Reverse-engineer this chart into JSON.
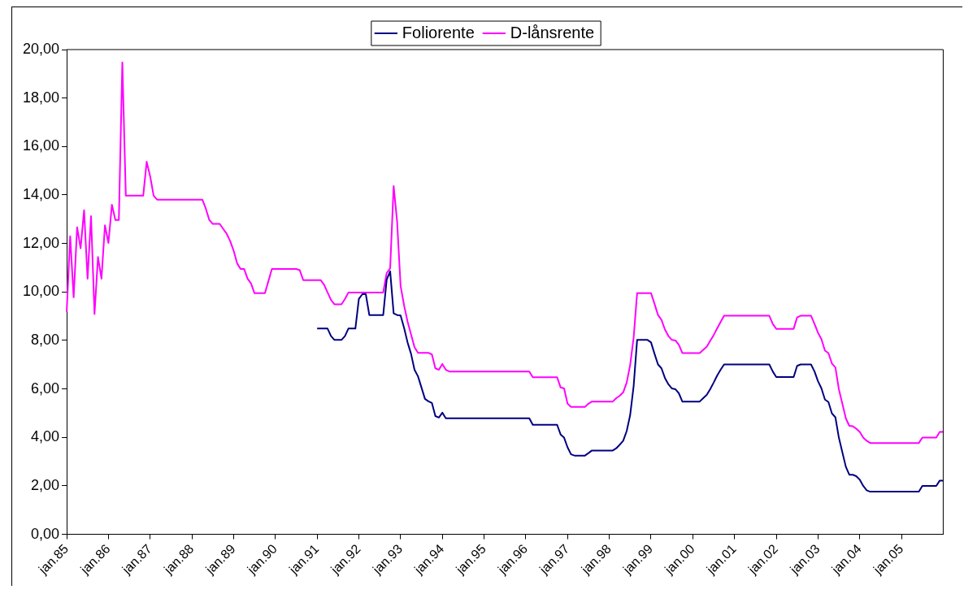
{
  "chart_data": {
    "type": "line",
    "legend": "top",
    "grid": false,
    "marker": "none",
    "line_style": "solid",
    "categories": [
      "jan.85",
      null,
      null,
      null,
      null,
      null,
      null,
      null,
      null,
      null,
      null,
      null,
      "jan.86",
      null,
      null,
      null,
      null,
      null,
      null,
      null,
      null,
      null,
      null,
      null,
      "jan.87",
      null,
      null,
      null,
      null,
      null,
      null,
      null,
      null,
      null,
      null,
      null,
      "jan.88",
      null,
      null,
      null,
      null,
      null,
      null,
      null,
      null,
      null,
      null,
      null,
      "jan.89",
      null,
      null,
      null,
      null,
      null,
      null,
      null,
      null,
      null,
      null,
      null,
      "jan.90",
      null,
      null,
      null,
      null,
      null,
      null,
      null,
      null,
      null,
      null,
      null,
      "jan.91",
      null,
      null,
      null,
      null,
      null,
      null,
      null,
      null,
      null,
      null,
      null,
      "jan.92",
      null,
      null,
      null,
      null,
      null,
      null,
      null,
      null,
      null,
      null,
      null,
      "jan.93",
      null,
      null,
      null,
      null,
      null,
      null,
      null,
      null,
      null,
      null,
      null,
      "jan.94",
      null,
      null,
      null,
      null,
      null,
      null,
      null,
      null,
      null,
      null,
      null,
      "jan.95",
      null,
      null,
      null,
      null,
      null,
      null,
      null,
      null,
      null,
      null,
      null,
      "jan.96",
      null,
      null,
      null,
      null,
      null,
      null,
      null,
      null,
      null,
      null,
      null,
      "jan.97",
      null,
      null,
      null,
      null,
      null,
      null,
      null,
      null,
      null,
      null,
      null,
      "jan.98",
      null,
      null,
      null,
      null,
      null,
      null,
      null,
      null,
      null,
      null,
      null,
      "jan.99",
      null,
      null,
      null,
      null,
      null,
      null,
      null,
      null,
      null,
      null,
      null,
      "jan.00",
      null,
      null,
      null,
      null,
      null,
      null,
      null,
      null,
      null,
      null,
      null,
      "jan.01",
      null,
      null,
      null,
      null,
      null,
      null,
      null,
      null,
      null,
      null,
      null,
      "jan.02",
      null,
      null,
      null,
      null,
      null,
      null,
      null,
      null,
      null,
      null,
      null,
      "jan.03",
      null,
      null,
      null,
      null,
      null,
      null,
      null,
      null,
      null,
      null,
      null,
      "jan.04",
      null,
      null,
      null,
      null,
      null,
      null,
      null,
      null,
      null,
      null,
      null,
      "jan.05",
      null,
      null,
      null,
      null,
      null,
      null,
      null,
      null,
      null,
      null,
      null,
      null
    ],
    "ylim": [
      0,
      20
    ],
    "yticks": [
      {
        "value": 0,
        "label": "0,00"
      },
      {
        "value": 2,
        "label": "2,00"
      },
      {
        "value": 4,
        "label": "4,00"
      },
      {
        "value": 6,
        "label": "6,00"
      },
      {
        "value": 8,
        "label": "8,00"
      },
      {
        "value": 10,
        "label": "10,00"
      },
      {
        "value": 12,
        "label": "12,00"
      },
      {
        "value": 14,
        "label": "14,00"
      },
      {
        "value": 16,
        "label": "16,00"
      },
      {
        "value": 18,
        "label": "18,00"
      },
      {
        "value": 20,
        "label": "20,00"
      }
    ],
    "series": [
      {
        "name": "Foliorente",
        "color": "#000080",
        "values": [
          null,
          null,
          null,
          null,
          null,
          null,
          null,
          null,
          null,
          null,
          null,
          null,
          null,
          null,
          null,
          null,
          null,
          null,
          null,
          null,
          null,
          null,
          null,
          null,
          null,
          null,
          null,
          null,
          null,
          null,
          null,
          null,
          null,
          null,
          null,
          null,
          null,
          null,
          null,
          null,
          null,
          null,
          null,
          null,
          null,
          null,
          null,
          null,
          null,
          null,
          null,
          null,
          null,
          null,
          null,
          null,
          null,
          null,
          null,
          null,
          null,
          null,
          null,
          null,
          null,
          null,
          null,
          null,
          null,
          null,
          null,
          null,
          8.49,
          8.49,
          8.49,
          8.49,
          8.18,
          8.02,
          8.02,
          8.02,
          8.18,
          8.49,
          8.49,
          8.49,
          9.71,
          9.91,
          9.91,
          9.05,
          9.05,
          9.05,
          9.05,
          9.05,
          10.51,
          10.85,
          9.12,
          9.05,
          9.03,
          8.52,
          7.92,
          7.45,
          6.79,
          6.52,
          6.06,
          5.59,
          5.49,
          5.42,
          4.88,
          4.82,
          5.02,
          4.79,
          4.79,
          4.79,
          4.79,
          4.79,
          4.79,
          4.79,
          4.79,
          4.79,
          4.79,
          4.79,
          4.79,
          4.79,
          4.79,
          4.79,
          4.79,
          4.79,
          4.79,
          4.79,
          4.79,
          4.79,
          4.79,
          4.79,
          4.79,
          4.79,
          4.52,
          4.52,
          4.52,
          4.52,
          4.52,
          4.52,
          4.52,
          4.52,
          4.12,
          3.99,
          3.59,
          3.3,
          3.25,
          3.25,
          3.25,
          3.25,
          3.35,
          3.46,
          3.46,
          3.46,
          3.46,
          3.46,
          3.46,
          3.46,
          3.55,
          3.7,
          3.86,
          4.26,
          4.92,
          6.12,
          8.02,
          8.02,
          8.02,
          8.02,
          7.92,
          7.45,
          7.01,
          6.85,
          6.45,
          6.19,
          6.02,
          5.99,
          5.82,
          5.48,
          5.48,
          5.48,
          5.48,
          5.48,
          5.48,
          5.62,
          5.75,
          5.99,
          6.26,
          6.55,
          6.79,
          7.01,
          7.01,
          7.01,
          7.01,
          7.01,
          7.01,
          7.01,
          7.01,
          7.01,
          7.01,
          7.01,
          7.01,
          7.01,
          7.01,
          6.72,
          6.49,
          6.49,
          6.49,
          6.49,
          6.49,
          6.49,
          6.95,
          7.01,
          7.01,
          7.01,
          7.01,
          6.72,
          6.32,
          6.02,
          5.56,
          5.46,
          4.99,
          4.83,
          3.99,
          3.39,
          2.79,
          2.46,
          2.46,
          2.4,
          2.26,
          2.0,
          1.82,
          1.76,
          1.76,
          1.76,
          1.76,
          1.76,
          1.76,
          1.76,
          1.76,
          1.76,
          1.76,
          1.76,
          1.76,
          1.76,
          1.76,
          1.76,
          2.0,
          2.0,
          2.0,
          2.0,
          2.0,
          2.22,
          2.22
        ]
      },
      {
        "name": "D-lånsrente",
        "color": "#ff00ff",
        "values": [
          9.18,
          12.3,
          9.78,
          12.67,
          11.8,
          13.37,
          10.55,
          13.13,
          9.09,
          11.44,
          10.55,
          12.75,
          12.02,
          13.6,
          12.97,
          12.97,
          19.47,
          13.97,
          13.97,
          13.97,
          13.97,
          13.97,
          13.97,
          15.37,
          14.77,
          13.97,
          13.81,
          13.81,
          13.81,
          13.81,
          13.81,
          13.81,
          13.81,
          13.81,
          13.81,
          13.81,
          13.81,
          13.81,
          13.81,
          13.81,
          13.44,
          12.97,
          12.81,
          12.81,
          12.81,
          12.6,
          12.4,
          12.1,
          11.7,
          11.18,
          10.95,
          10.95,
          10.55,
          10.35,
          9.95,
          9.95,
          9.95,
          9.95,
          10.45,
          10.95,
          10.95,
          10.95,
          10.95,
          10.95,
          10.95,
          10.95,
          10.95,
          10.9,
          10.49,
          10.49,
          10.49,
          10.49,
          10.49,
          10.49,
          10.3,
          9.98,
          9.67,
          9.49,
          9.49,
          9.49,
          9.71,
          9.98,
          9.98,
          9.98,
          9.98,
          9.98,
          9.98,
          9.98,
          9.98,
          9.98,
          9.98,
          9.98,
          10.78,
          10.98,
          14.37,
          12.9,
          10.25,
          9.45,
          8.78,
          8.25,
          7.72,
          7.49,
          7.49,
          7.49,
          7.49,
          7.42,
          6.85,
          6.79,
          7.03,
          6.79,
          6.72,
          6.72,
          6.72,
          6.72,
          6.72,
          6.72,
          6.72,
          6.72,
          6.72,
          6.72,
          6.72,
          6.72,
          6.72,
          6.72,
          6.72,
          6.72,
          6.72,
          6.72,
          6.72,
          6.72,
          6.72,
          6.72,
          6.72,
          6.72,
          6.48,
          6.48,
          6.48,
          6.48,
          6.48,
          6.48,
          6.48,
          6.48,
          6.06,
          6.02,
          5.39,
          5.26,
          5.26,
          5.26,
          5.26,
          5.26,
          5.39,
          5.48,
          5.48,
          5.48,
          5.48,
          5.48,
          5.48,
          5.48,
          5.62,
          5.72,
          5.86,
          6.26,
          6.99,
          8.12,
          9.95,
          9.95,
          9.95,
          9.95,
          9.95,
          9.51,
          9.05,
          8.85,
          8.45,
          8.18,
          8.02,
          8.0,
          7.82,
          7.48,
          7.48,
          7.48,
          7.48,
          7.48,
          7.48,
          7.61,
          7.74,
          7.98,
          8.22,
          8.49,
          8.76,
          9.02,
          9.02,
          9.02,
          9.02,
          9.02,
          9.02,
          9.02,
          9.02,
          9.02,
          9.02,
          9.02,
          9.02,
          9.02,
          9.02,
          8.68,
          8.48,
          8.48,
          8.48,
          8.48,
          8.48,
          8.48,
          8.95,
          9.02,
          9.02,
          9.02,
          9.02,
          8.68,
          8.32,
          8.05,
          7.58,
          7.48,
          7.05,
          6.89,
          5.99,
          5.39,
          4.79,
          4.48,
          4.46,
          4.36,
          4.23,
          3.99,
          3.86,
          3.77,
          3.77,
          3.77,
          3.77,
          3.77,
          3.77,
          3.77,
          3.77,
          3.77,
          3.77,
          3.77,
          3.77,
          3.77,
          3.77,
          3.77,
          3.99,
          3.99,
          3.99,
          3.99,
          3.99,
          4.23,
          4.23
        ]
      }
    ]
  }
}
